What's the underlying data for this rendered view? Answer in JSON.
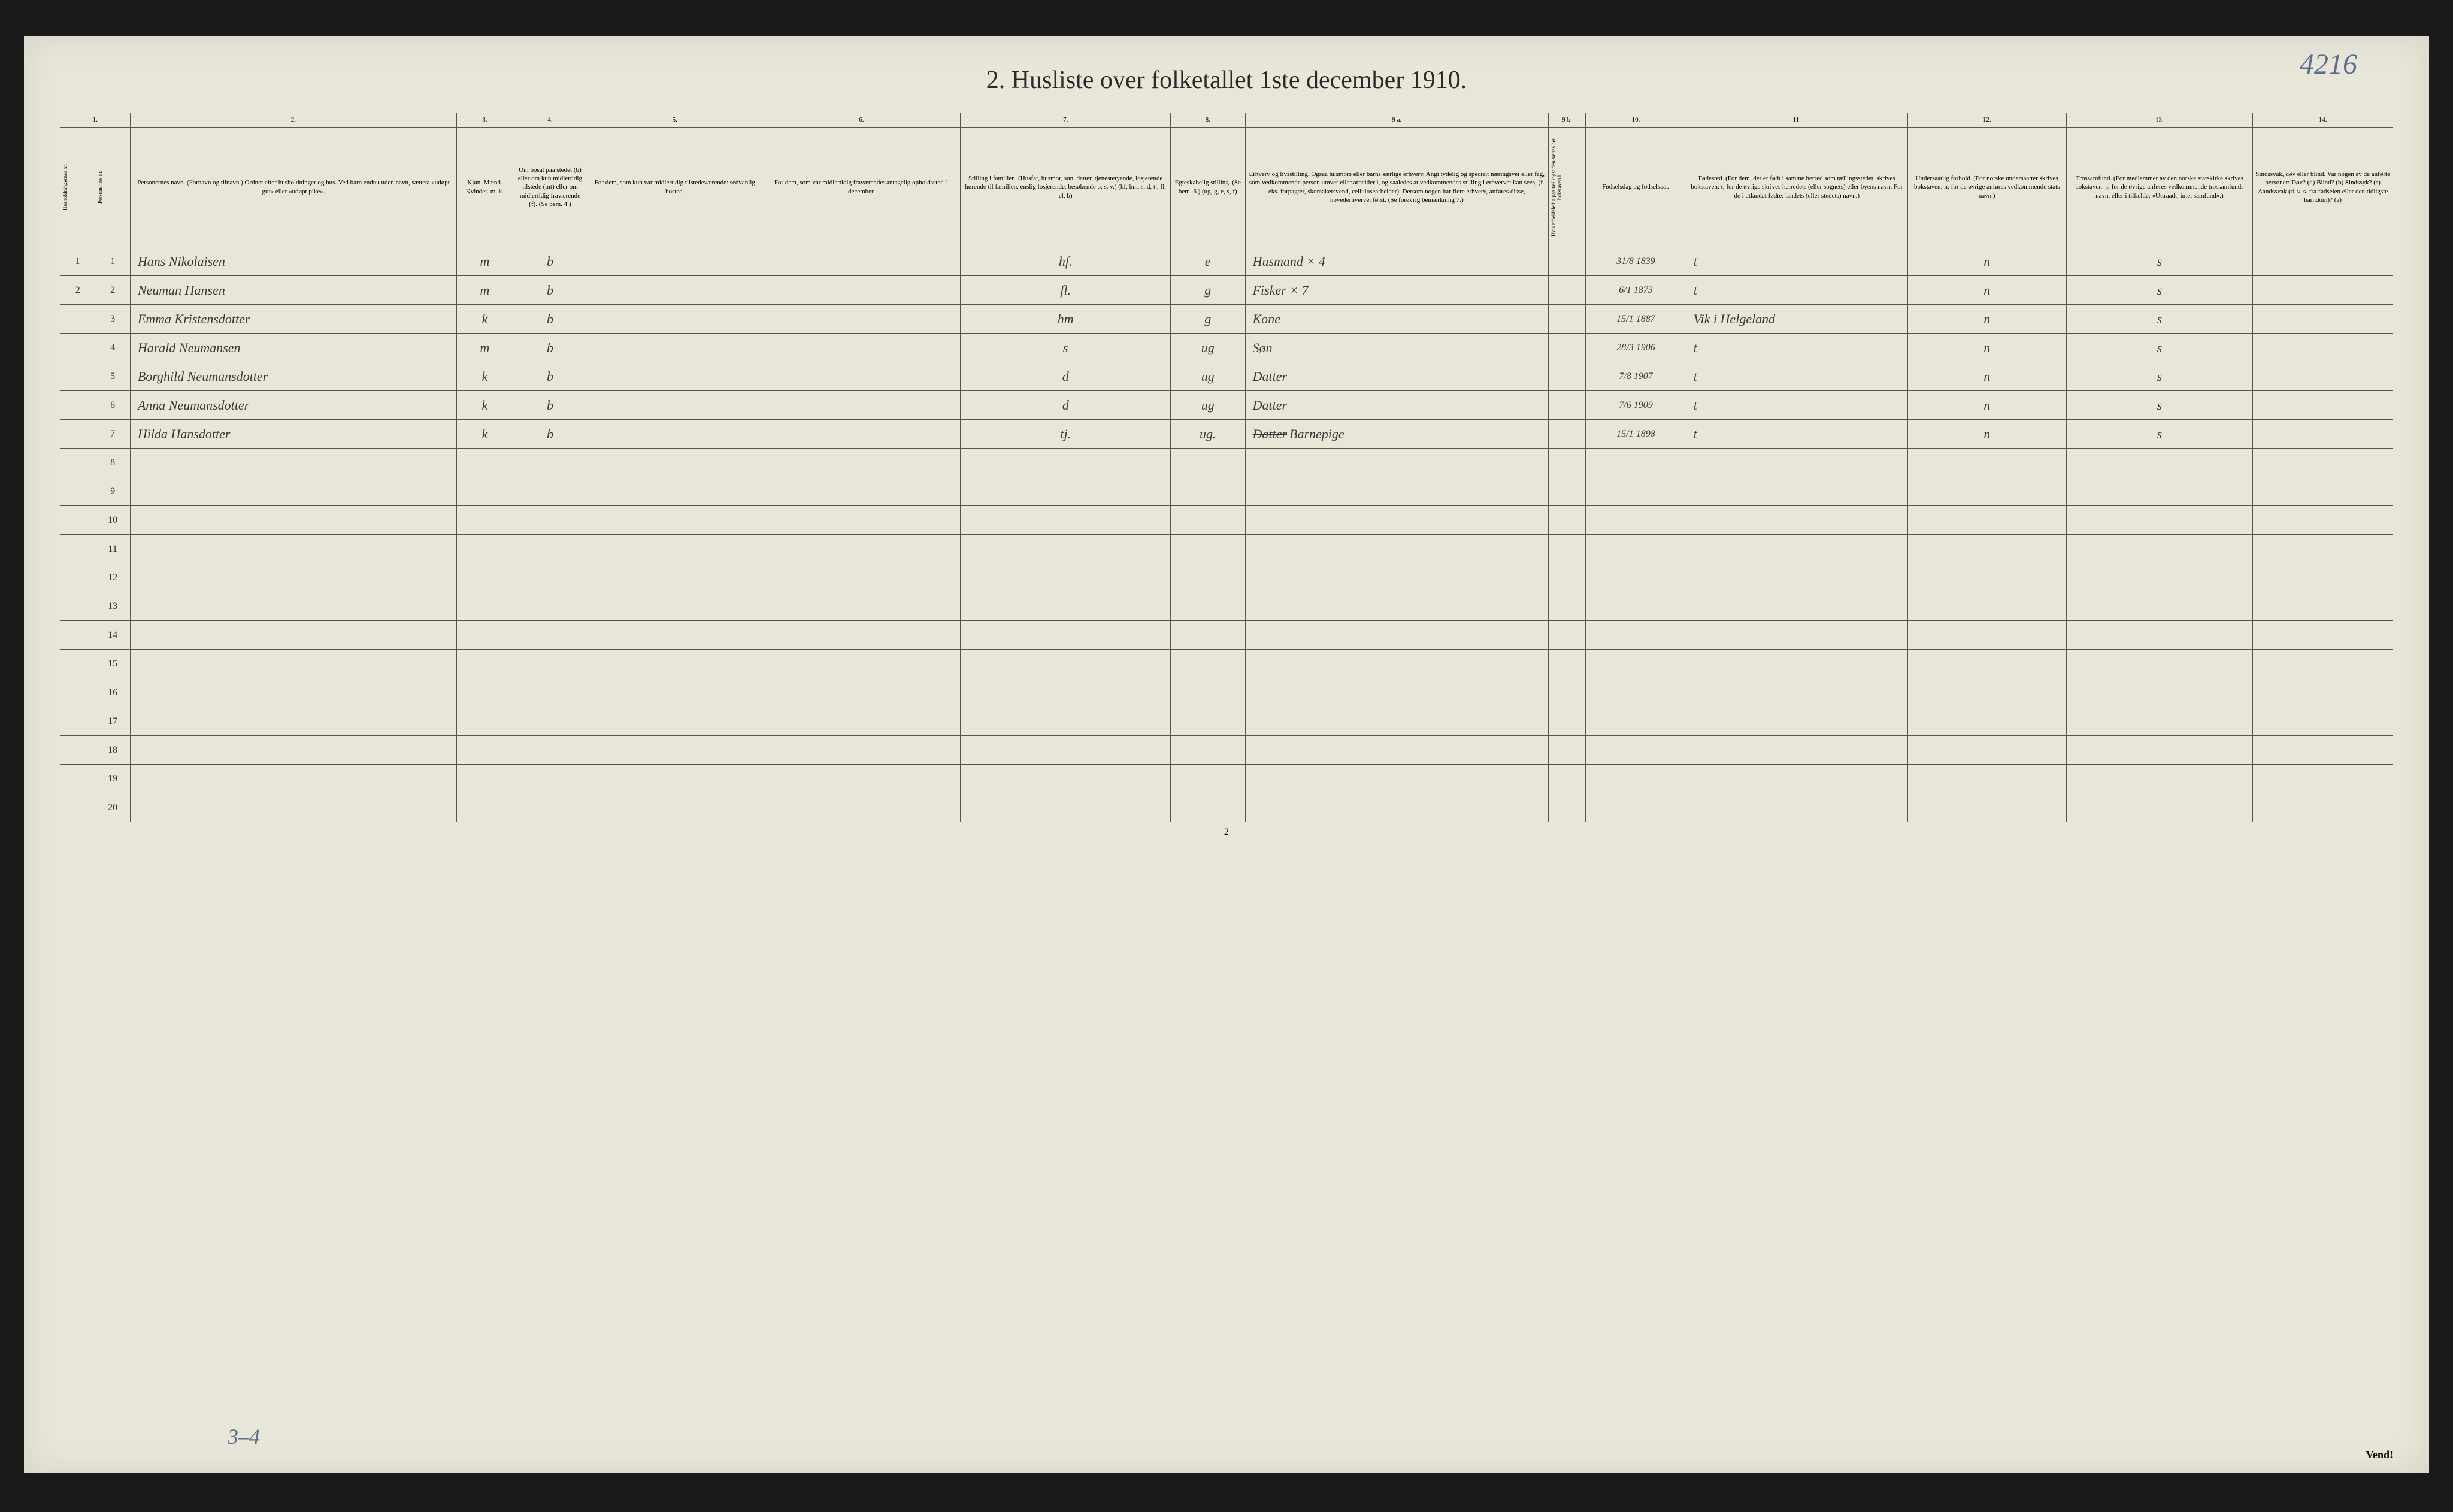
{
  "page_number_top": "4216",
  "title": "2.  Husliste over folketallet 1ste december 1910.",
  "column_numbers": [
    "1.",
    "2.",
    "3.",
    "4.",
    "5.",
    "6.",
    "7.",
    "8.",
    "9 a.",
    "9 b.",
    "10.",
    "11.",
    "12.",
    "13.",
    "14."
  ],
  "headers": {
    "c1a": "Husholdningernes nr.",
    "c1b": "Personernes nr.",
    "c2": "Personernes navn.\n(Fornavn og tilnavn.)\nOrdnet efter husholdninger og hus.\nVed barn endnu uden navn, sættes: «udøpt gut» eller «udøpt pike».",
    "c3": "Kjøn.\nMænd.   Kvinder.\nm.  k.",
    "c4": "Om bosat paa stedet (b) eller om kun midlertidig tilstede (mt) eller om midlertidig fraværende (f).\n(Se bem. 4.)",
    "c5": "For dem, som kun var midlertidig tilstedeværende:\nsedvanlig bosted.",
    "c6": "For dem, som var midlertidig fraværende:\nantagelig opholdssted 1 december.",
    "c7": "Stilling i familien.\n(Husfar, husmor, søn, datter, tjenestetyende, losjerende hørende til familien, enslig losjerende, besøkende o. s. v.)\n(hf, hm, s, d, tj, fl, el, b)",
    "c8": "Egteskabelig stilling.\n(Se bem. 6.)\n(ug, g, e, s, f)",
    "c9a": "Erhverv og livsstilling.\nOgsaa husmors eller barns særlige erhverv. Angi tydelig og specielt næringsvei eller fag, som vedkommende person utøver eller arbeider i, og saaledes at vedkommendes stilling i erhvervet kan sees, (f. eks. forpagter, skomakersvend, cellulosearbeider). Dersom nogen har flere erhverv, anføres disse, hovederhvervet først.\n(Se forøvrig bemærkning 7.)",
    "c9b": "Hvis arbeidsledig paa tællingstiden sættes her bokstaven l.",
    "c10": "Fødselsdag og fødselsaar.",
    "c11": "Fødested.\n(For dem, der er født i samme herred som tællingsstedet, skrives bokstaven: t; for de øvrige skrives herredets (eller sognets) eller byens navn. For de i utlandet fødte: landets (eller stedets) navn.)",
    "c12": "Undersaatlig forhold.\n(For norske undersaatter skrives bokstaven: n; for de øvrige anføres vedkommende stats navn.)",
    "c13": "Trossamfund.\n(For medlemmer av den norske statskirke skrives bokstaven: s; for de øvrige anføres vedkommende trossamfunds navn, eller i tilfælde: «Uttraadt, intet samfund».)",
    "c14": "Sindssvak, døv eller blind.\nVar nogen av de anførte personer:\nDøv? (d)\nBlind? (b)\nSindssyk? (s)\nAandssvak (d. v. s. fra fødselen eller den tidligste barndom)? (a)"
  },
  "rows": [
    {
      "hh": "1",
      "pn": "1",
      "name": "Hans Nikolaisen",
      "sex": "m",
      "res": "b",
      "col5": "",
      "col6": "",
      "fam": "hf.",
      "mar": "e",
      "occ": "Husmand  × 4",
      "c9b": "",
      "birth": "31/8 1839",
      "birthplace": "t",
      "nat": "n",
      "rel": "s",
      "c14": ""
    },
    {
      "hh": "2",
      "pn": "2",
      "name": "Neuman Hansen",
      "sex": "m",
      "res": "b",
      "col5": "",
      "col6": "",
      "fam": "fl.",
      "mar": "g",
      "occ": "Fisker  × 7",
      "c9b": "",
      "birth": "6/1 1873",
      "birthplace": "t",
      "nat": "n",
      "rel": "s",
      "c14": ""
    },
    {
      "hh": "",
      "pn": "3",
      "name": "Emma Kristensdotter",
      "sex": "k",
      "res": "b",
      "col5": "",
      "col6": "",
      "fam": "hm",
      "mar": "g",
      "occ": "Kone",
      "c9b": "",
      "birth": "15/1 1887",
      "birthplace": "Vik i Helgeland",
      "nat": "n",
      "rel": "s",
      "c14": ""
    },
    {
      "hh": "",
      "pn": "4",
      "name": "Harald Neumansen",
      "sex": "m",
      "res": "b",
      "col5": "",
      "col6": "",
      "fam": "s",
      "mar": "ug",
      "occ": "Søn",
      "c9b": "",
      "birth": "28/3 1906",
      "birthplace": "t",
      "nat": "n",
      "rel": "s",
      "c14": ""
    },
    {
      "hh": "",
      "pn": "5",
      "name": "Borghild Neumansdotter",
      "sex": "k",
      "res": "b",
      "col5": "",
      "col6": "",
      "fam": "d",
      "mar": "ug",
      "occ": "Datter",
      "c9b": "",
      "birth": "7/8 1907",
      "birthplace": "t",
      "nat": "n",
      "rel": "s",
      "c14": ""
    },
    {
      "hh": "",
      "pn": "6",
      "name": "Anna Neumansdotter",
      "sex": "k",
      "res": "b",
      "col5": "",
      "col6": "",
      "fam": "d",
      "mar": "ug",
      "occ": "Datter",
      "c9b": "",
      "birth": "7/6 1909",
      "birthplace": "t",
      "nat": "n",
      "rel": "s",
      "c14": ""
    },
    {
      "hh": "",
      "pn": "7",
      "name": "Hilda Hansdotter",
      "sex": "k",
      "res": "b",
      "col5": "",
      "col6": "",
      "fam": "tj.",
      "mar": "ug.",
      "occ_struck": "Datter",
      "occ": "Barnepige",
      "c9b": "",
      "birth": "15/1 1898",
      "birthplace": "t",
      "nat": "n",
      "rel": "s",
      "c14": ""
    }
  ],
  "empty_row_numbers": [
    "8",
    "9",
    "10",
    "11",
    "12",
    "13",
    "14",
    "15",
    "16",
    "17",
    "18",
    "19",
    "20"
  ],
  "bottom_annotation": "3–4",
  "page_foot": "2",
  "vend": "Vend!",
  "col_widths_pct": {
    "c1a": 1.5,
    "c1b": 1.5,
    "c2": 14,
    "c3": 2.4,
    "c4": 3.2,
    "c5": 7.5,
    "c6": 8.5,
    "c7": 9,
    "c8": 3.2,
    "c9a": 13,
    "c9b": 1.6,
    "c10": 4.3,
    "c11": 9.5,
    "c12": 6.8,
    "c13": 8,
    "c14": 6
  },
  "colors": {
    "page_bg": "#e8e6d8",
    "border": "#555555",
    "pencil_blue": "#5a7090",
    "ink": "#3a3a3a"
  }
}
